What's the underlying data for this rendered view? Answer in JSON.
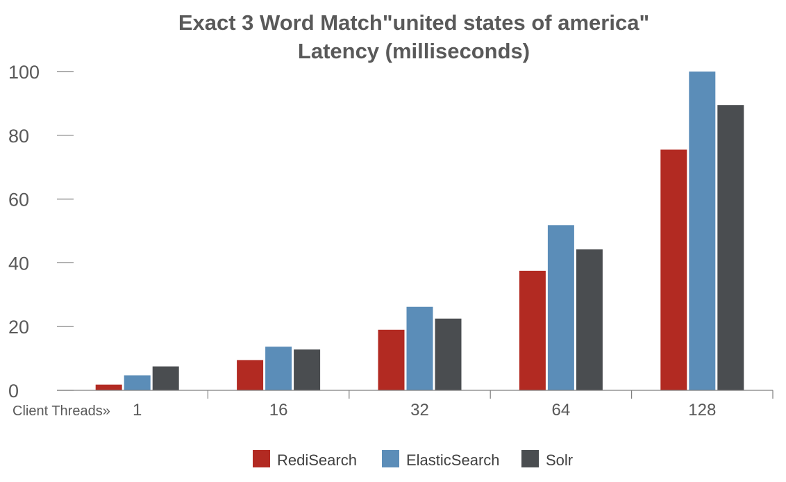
{
  "chart_data": {
    "type": "bar",
    "title": "Exact 3 Word Match\"united states of america\"",
    "subtitle": "Latency (milliseconds)",
    "xlabel": "Client Threads»",
    "ylabel": "",
    "categories": [
      "1",
      "16",
      "32",
      "64",
      "128"
    ],
    "ylim": [
      0,
      100
    ],
    "yticks": [
      "0",
      "20",
      "40",
      "60",
      "80",
      "100"
    ],
    "grid": false,
    "legend_position": "bottom",
    "series": [
      {
        "name": "RediSearch",
        "color": "#B22A22",
        "values": [
          1.8,
          9.5,
          19,
          37.5,
          75.5
        ]
      },
      {
        "name": "ElasticSearch",
        "color": "#5B8DB8",
        "values": [
          4.7,
          13.7,
          26.2,
          51.8,
          100
        ]
      },
      {
        "name": "Solr",
        "color": "#4A4D50",
        "values": [
          7.5,
          12.8,
          22.5,
          44.2,
          89.5
        ]
      }
    ]
  }
}
